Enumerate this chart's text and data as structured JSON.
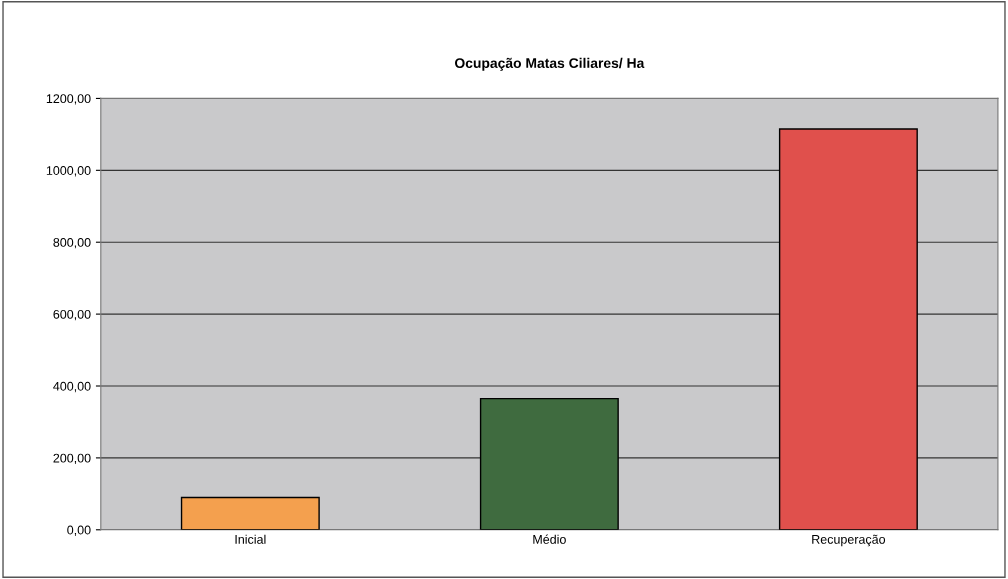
{
  "chart_data": {
    "type": "bar",
    "title": "Ocupação Matas Ciliares/ Ha",
    "categories": [
      "Inicial",
      "Médio",
      "Recuperação"
    ],
    "values": [
      90,
      365,
      1115
    ],
    "colors": [
      "#f4a04e",
      "#3f6b3f",
      "#e0504c"
    ],
    "ylim": [
      0,
      1200
    ],
    "yticks": [
      {
        "value": 0,
        "label": "0,00"
      },
      {
        "value": 200,
        "label": "200,00"
      },
      {
        "value": 400,
        "label": "400,00"
      },
      {
        "value": 600,
        "label": "600,00"
      },
      {
        "value": 800,
        "label": "800,00"
      },
      {
        "value": 1000,
        "label": "1000,00"
      },
      {
        "value": 1200,
        "label": "1200,00"
      }
    ],
    "grid": "y",
    "legend": false
  }
}
